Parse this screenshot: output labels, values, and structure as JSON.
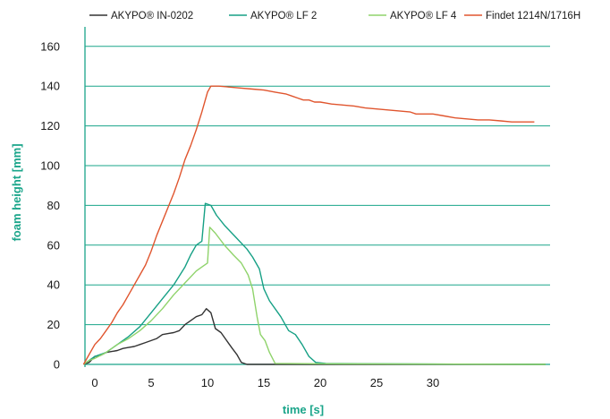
{
  "colors": {
    "accent": "#1aa58a",
    "grid": "#1aa58a",
    "text": "#1a1a1a"
  },
  "chart_data": {
    "type": "line",
    "title": "",
    "xlabel": "time [s]",
    "ylabel": "foam height [mm]",
    "xlim": [
      -1,
      40
    ],
    "ylim": [
      0,
      165
    ],
    "x_ticks": [
      0,
      5,
      10,
      15,
      20,
      25,
      30
    ],
    "y_ticks": [
      0,
      20,
      40,
      60,
      80,
      100,
      120,
      140,
      160
    ],
    "grid": "horizontal",
    "legend_position": "top",
    "series": [
      {
        "name": "AKYPO® IN-0202",
        "color": "#333333",
        "points": [
          [
            -1,
            0
          ],
          [
            -0.5,
            1
          ],
          [
            0,
            4
          ],
          [
            0.5,
            4.5
          ],
          [
            1,
            6
          ],
          [
            1.5,
            6.5
          ],
          [
            2,
            7
          ],
          [
            2.5,
            8
          ],
          [
            3,
            8.5
          ],
          [
            3.5,
            9
          ],
          [
            4,
            10
          ],
          [
            4.5,
            11
          ],
          [
            5,
            12
          ],
          [
            5.5,
            13
          ],
          [
            6,
            15
          ],
          [
            6.5,
            15.5
          ],
          [
            7,
            16
          ],
          [
            7.5,
            17
          ],
          [
            8,
            20
          ],
          [
            8.5,
            22
          ],
          [
            9,
            24
          ],
          [
            9.5,
            25
          ],
          [
            9.9,
            28
          ],
          [
            10.3,
            26
          ],
          [
            10.7,
            18
          ],
          [
            11.2,
            16
          ],
          [
            11.7,
            12
          ],
          [
            12.2,
            8
          ],
          [
            12.6,
            5
          ],
          [
            13,
            1
          ],
          [
            13.5,
            0
          ],
          [
            20,
            0
          ],
          [
            40,
            0
          ]
        ]
      },
      {
        "name": "AKYPO® LF 2",
        "color": "#16a085",
        "points": [
          [
            -1,
            0
          ],
          [
            -0.5,
            2
          ],
          [
            0,
            4
          ],
          [
            1,
            6
          ],
          [
            2,
            10
          ],
          [
            3,
            14
          ],
          [
            4,
            19
          ],
          [
            5,
            26
          ],
          [
            6,
            33
          ],
          [
            7,
            40
          ],
          [
            8,
            49
          ],
          [
            8.5,
            55
          ],
          [
            9,
            60
          ],
          [
            9.5,
            62
          ],
          [
            9.8,
            81
          ],
          [
            10.3,
            80
          ],
          [
            10.8,
            75
          ],
          [
            11.5,
            70
          ],
          [
            12.5,
            64
          ],
          [
            13.5,
            58
          ],
          [
            14,
            54
          ],
          [
            14.6,
            48
          ],
          [
            15,
            38
          ],
          [
            15.5,
            32
          ],
          [
            16.5,
            24
          ],
          [
            17.2,
            17
          ],
          [
            17.8,
            15
          ],
          [
            18.4,
            10
          ],
          [
            19,
            4
          ],
          [
            19.6,
            1
          ],
          [
            20.5,
            0.5
          ],
          [
            25,
            0.3
          ],
          [
            30,
            0.2
          ],
          [
            40,
            0
          ]
        ]
      },
      {
        "name": "AKYPO® LF 4",
        "color": "#8fd36b",
        "points": [
          [
            -1,
            0
          ],
          [
            -0.5,
            2
          ],
          [
            0,
            3
          ],
          [
            1,
            6
          ],
          [
            2,
            10
          ],
          [
            3,
            13
          ],
          [
            4,
            17
          ],
          [
            5,
            22
          ],
          [
            6,
            28
          ],
          [
            7,
            35
          ],
          [
            8,
            41
          ],
          [
            9,
            47
          ],
          [
            9.5,
            49
          ],
          [
            10,
            51
          ],
          [
            10.2,
            69
          ],
          [
            10.7,
            66
          ],
          [
            11.5,
            60
          ],
          [
            12.3,
            55
          ],
          [
            13,
            51
          ],
          [
            13.6,
            45
          ],
          [
            14,
            38
          ],
          [
            14.4,
            24
          ],
          [
            14.7,
            15
          ],
          [
            15.1,
            12
          ],
          [
            15.5,
            6
          ],
          [
            16,
            0.5
          ],
          [
            20,
            0.3
          ],
          [
            40,
            0
          ]
        ]
      },
      {
        "name": "Findet 1214N/1716H",
        "color": "#e0552e",
        "points": [
          [
            -1,
            0
          ],
          [
            -0.5,
            5
          ],
          [
            0,
            10
          ],
          [
            0.5,
            13
          ],
          [
            1,
            17
          ],
          [
            1.5,
            21
          ],
          [
            2,
            26
          ],
          [
            2.5,
            30
          ],
          [
            3,
            35
          ],
          [
            3.5,
            40
          ],
          [
            4,
            45
          ],
          [
            4.5,
            50
          ],
          [
            5,
            57
          ],
          [
            5.5,
            65
          ],
          [
            6,
            72
          ],
          [
            6.5,
            79
          ],
          [
            7,
            86
          ],
          [
            7.5,
            94
          ],
          [
            8,
            103
          ],
          [
            8.5,
            110
          ],
          [
            9,
            118
          ],
          [
            9.5,
            127
          ],
          [
            10,
            137
          ],
          [
            10.3,
            140
          ],
          [
            11,
            140
          ],
          [
            12,
            139.5
          ],
          [
            13,
            139
          ],
          [
            14,
            138.5
          ],
          [
            15,
            138
          ],
          [
            16,
            137
          ],
          [
            17,
            136
          ],
          [
            17.5,
            135
          ],
          [
            18,
            134
          ],
          [
            18.5,
            133
          ],
          [
            19,
            133
          ],
          [
            19.5,
            132
          ],
          [
            20,
            132
          ],
          [
            20.5,
            131.5
          ],
          [
            21,
            131
          ],
          [
            22,
            130.5
          ],
          [
            23,
            130
          ],
          [
            24,
            129
          ],
          [
            25,
            128.5
          ],
          [
            26,
            128
          ],
          [
            27,
            127.5
          ],
          [
            28,
            127
          ],
          [
            28.5,
            126
          ],
          [
            29,
            126
          ],
          [
            30,
            126
          ],
          [
            31,
            125
          ],
          [
            32,
            124
          ],
          [
            33,
            123.5
          ],
          [
            34,
            123
          ],
          [
            35,
            123
          ],
          [
            36,
            122.5
          ],
          [
            37,
            122
          ],
          [
            38,
            122
          ],
          [
            39,
            122
          ]
        ]
      }
    ]
  }
}
